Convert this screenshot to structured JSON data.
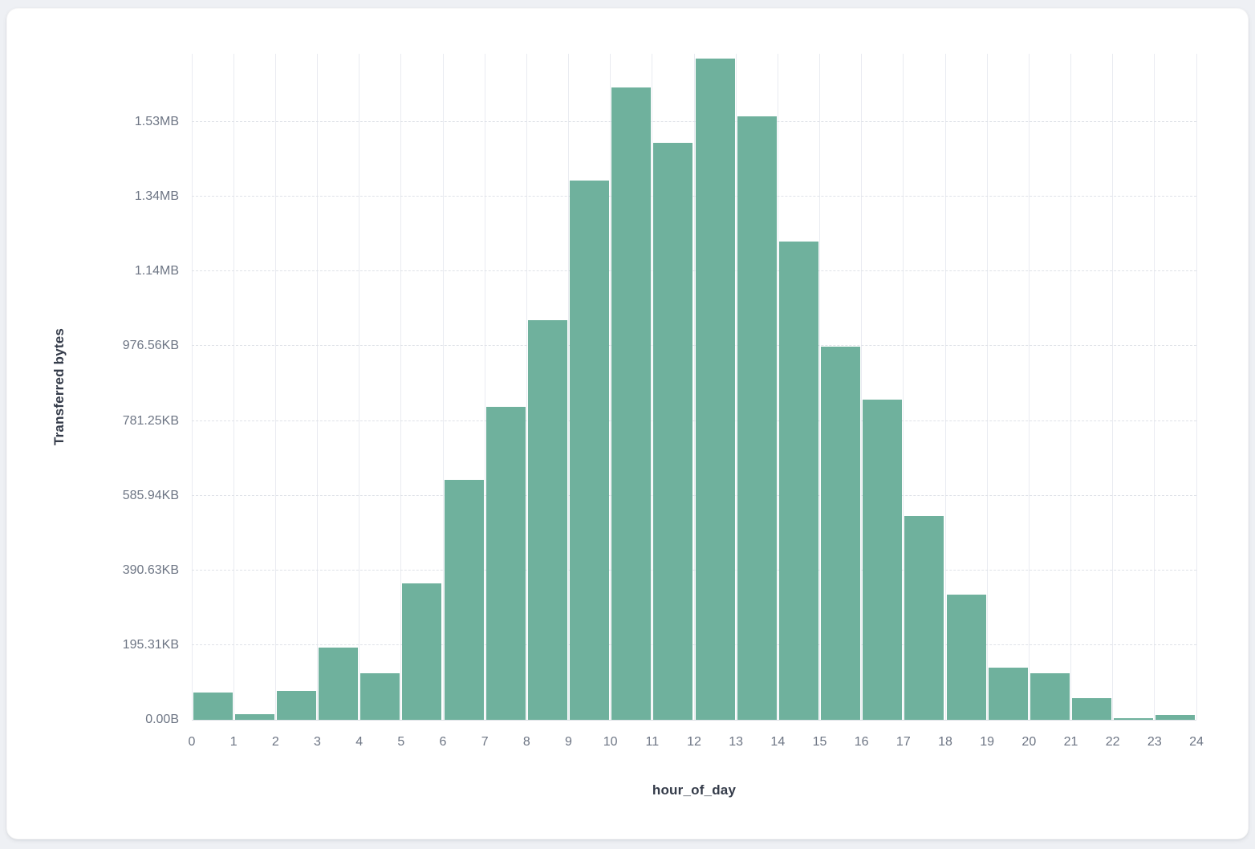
{
  "page": {
    "background_color": "#eef0f4",
    "card_background_color": "#ffffff"
  },
  "chart_data": {
    "type": "bar",
    "kind": "histogram",
    "title": "",
    "xlabel": "hour_of_day",
    "ylabel": "Transferred bytes",
    "bar_color": "#6fb19d",
    "legend": "none",
    "grid": true,
    "x_range": [
      0,
      24
    ],
    "y_max_bytes": 1782579,
    "categories": [
      0,
      1,
      2,
      3,
      4,
      5,
      6,
      7,
      8,
      9,
      10,
      11,
      12,
      13,
      14,
      15,
      16,
      17,
      18,
      19,
      20,
      21,
      22,
      23
    ],
    "values_bytes": [
      72000,
      16000,
      78000,
      194000,
      124000,
      366000,
      643000,
      838000,
      1070000,
      1444000,
      1692000,
      1545000,
      1770000,
      1615000,
      1281000,
      999000,
      857000,
      546000,
      336000,
      140000,
      124000,
      57000,
      4000,
      13000
    ],
    "x_ticks": [
      "0",
      "1",
      "2",
      "3",
      "4",
      "5",
      "6",
      "7",
      "8",
      "9",
      "10",
      "11",
      "12",
      "13",
      "14",
      "15",
      "16",
      "17",
      "18",
      "19",
      "20",
      "21",
      "22",
      "23",
      "24"
    ],
    "y_ticks": [
      {
        "label": "0.00B",
        "bytes": 0
      },
      {
        "label": "195.31KB",
        "bytes": 200000
      },
      {
        "label": "390.63KB",
        "bytes": 400000
      },
      {
        "label": "585.94KB",
        "bytes": 600000
      },
      {
        "label": "781.25KB",
        "bytes": 800000
      },
      {
        "label": "976.56KB",
        "bytes": 1000000
      },
      {
        "label": "1.14MB",
        "bytes": 1200000
      },
      {
        "label": "1.34MB",
        "bytes": 1400000
      },
      {
        "label": "1.53MB",
        "bytes": 1600000
      }
    ]
  }
}
